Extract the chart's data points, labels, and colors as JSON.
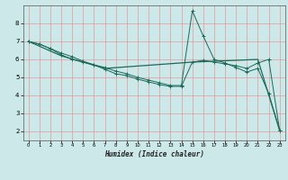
{
  "title": "",
  "xlabel": "Humidex (Indice chaleur)",
  "bg_color": "#cce8e8",
  "grid_color": "#e88888",
  "line_color": "#1a6b5a",
  "xlim": [
    -0.5,
    23.5
  ],
  "ylim": [
    1.5,
    9.0
  ],
  "x_ticks": [
    0,
    1,
    2,
    3,
    4,
    5,
    6,
    7,
    8,
    9,
    10,
    11,
    12,
    13,
    14,
    15,
    16,
    17,
    18,
    19,
    20,
    21,
    22,
    23
  ],
  "y_ticks": [
    2,
    3,
    4,
    5,
    6,
    7,
    8
  ],
  "series1_x": [
    0,
    1,
    2,
    3,
    4,
    5,
    6,
    7,
    8,
    9,
    10,
    11,
    12,
    13,
    14,
    15,
    16,
    17,
    18,
    19,
    20,
    21,
    22,
    23
  ],
  "series1_y": [
    7.0,
    6.85,
    6.6,
    6.35,
    6.15,
    5.9,
    5.7,
    5.55,
    5.35,
    5.2,
    5.0,
    4.85,
    4.7,
    4.55,
    4.55,
    8.7,
    7.3,
    6.0,
    5.8,
    5.55,
    5.3,
    5.5,
    4.1,
    2.05
  ],
  "series2_x": [
    0,
    1,
    2,
    3,
    4,
    5,
    6,
    7,
    8,
    9,
    10,
    11,
    12,
    13,
    14,
    15,
    16,
    17,
    18,
    19,
    20,
    21,
    22,
    23
  ],
  "series2_y": [
    7.0,
    6.85,
    6.6,
    6.25,
    6.0,
    5.85,
    5.7,
    5.45,
    5.2,
    5.1,
    4.9,
    4.75,
    4.6,
    4.5,
    4.5,
    5.85,
    5.95,
    5.85,
    5.75,
    5.65,
    5.5,
    5.8,
    6.0,
    2.05
  ],
  "series3_x": [
    0,
    3,
    7,
    15,
    21,
    23
  ],
  "series3_y": [
    7.0,
    6.2,
    5.5,
    5.85,
    6.0,
    2.05
  ]
}
